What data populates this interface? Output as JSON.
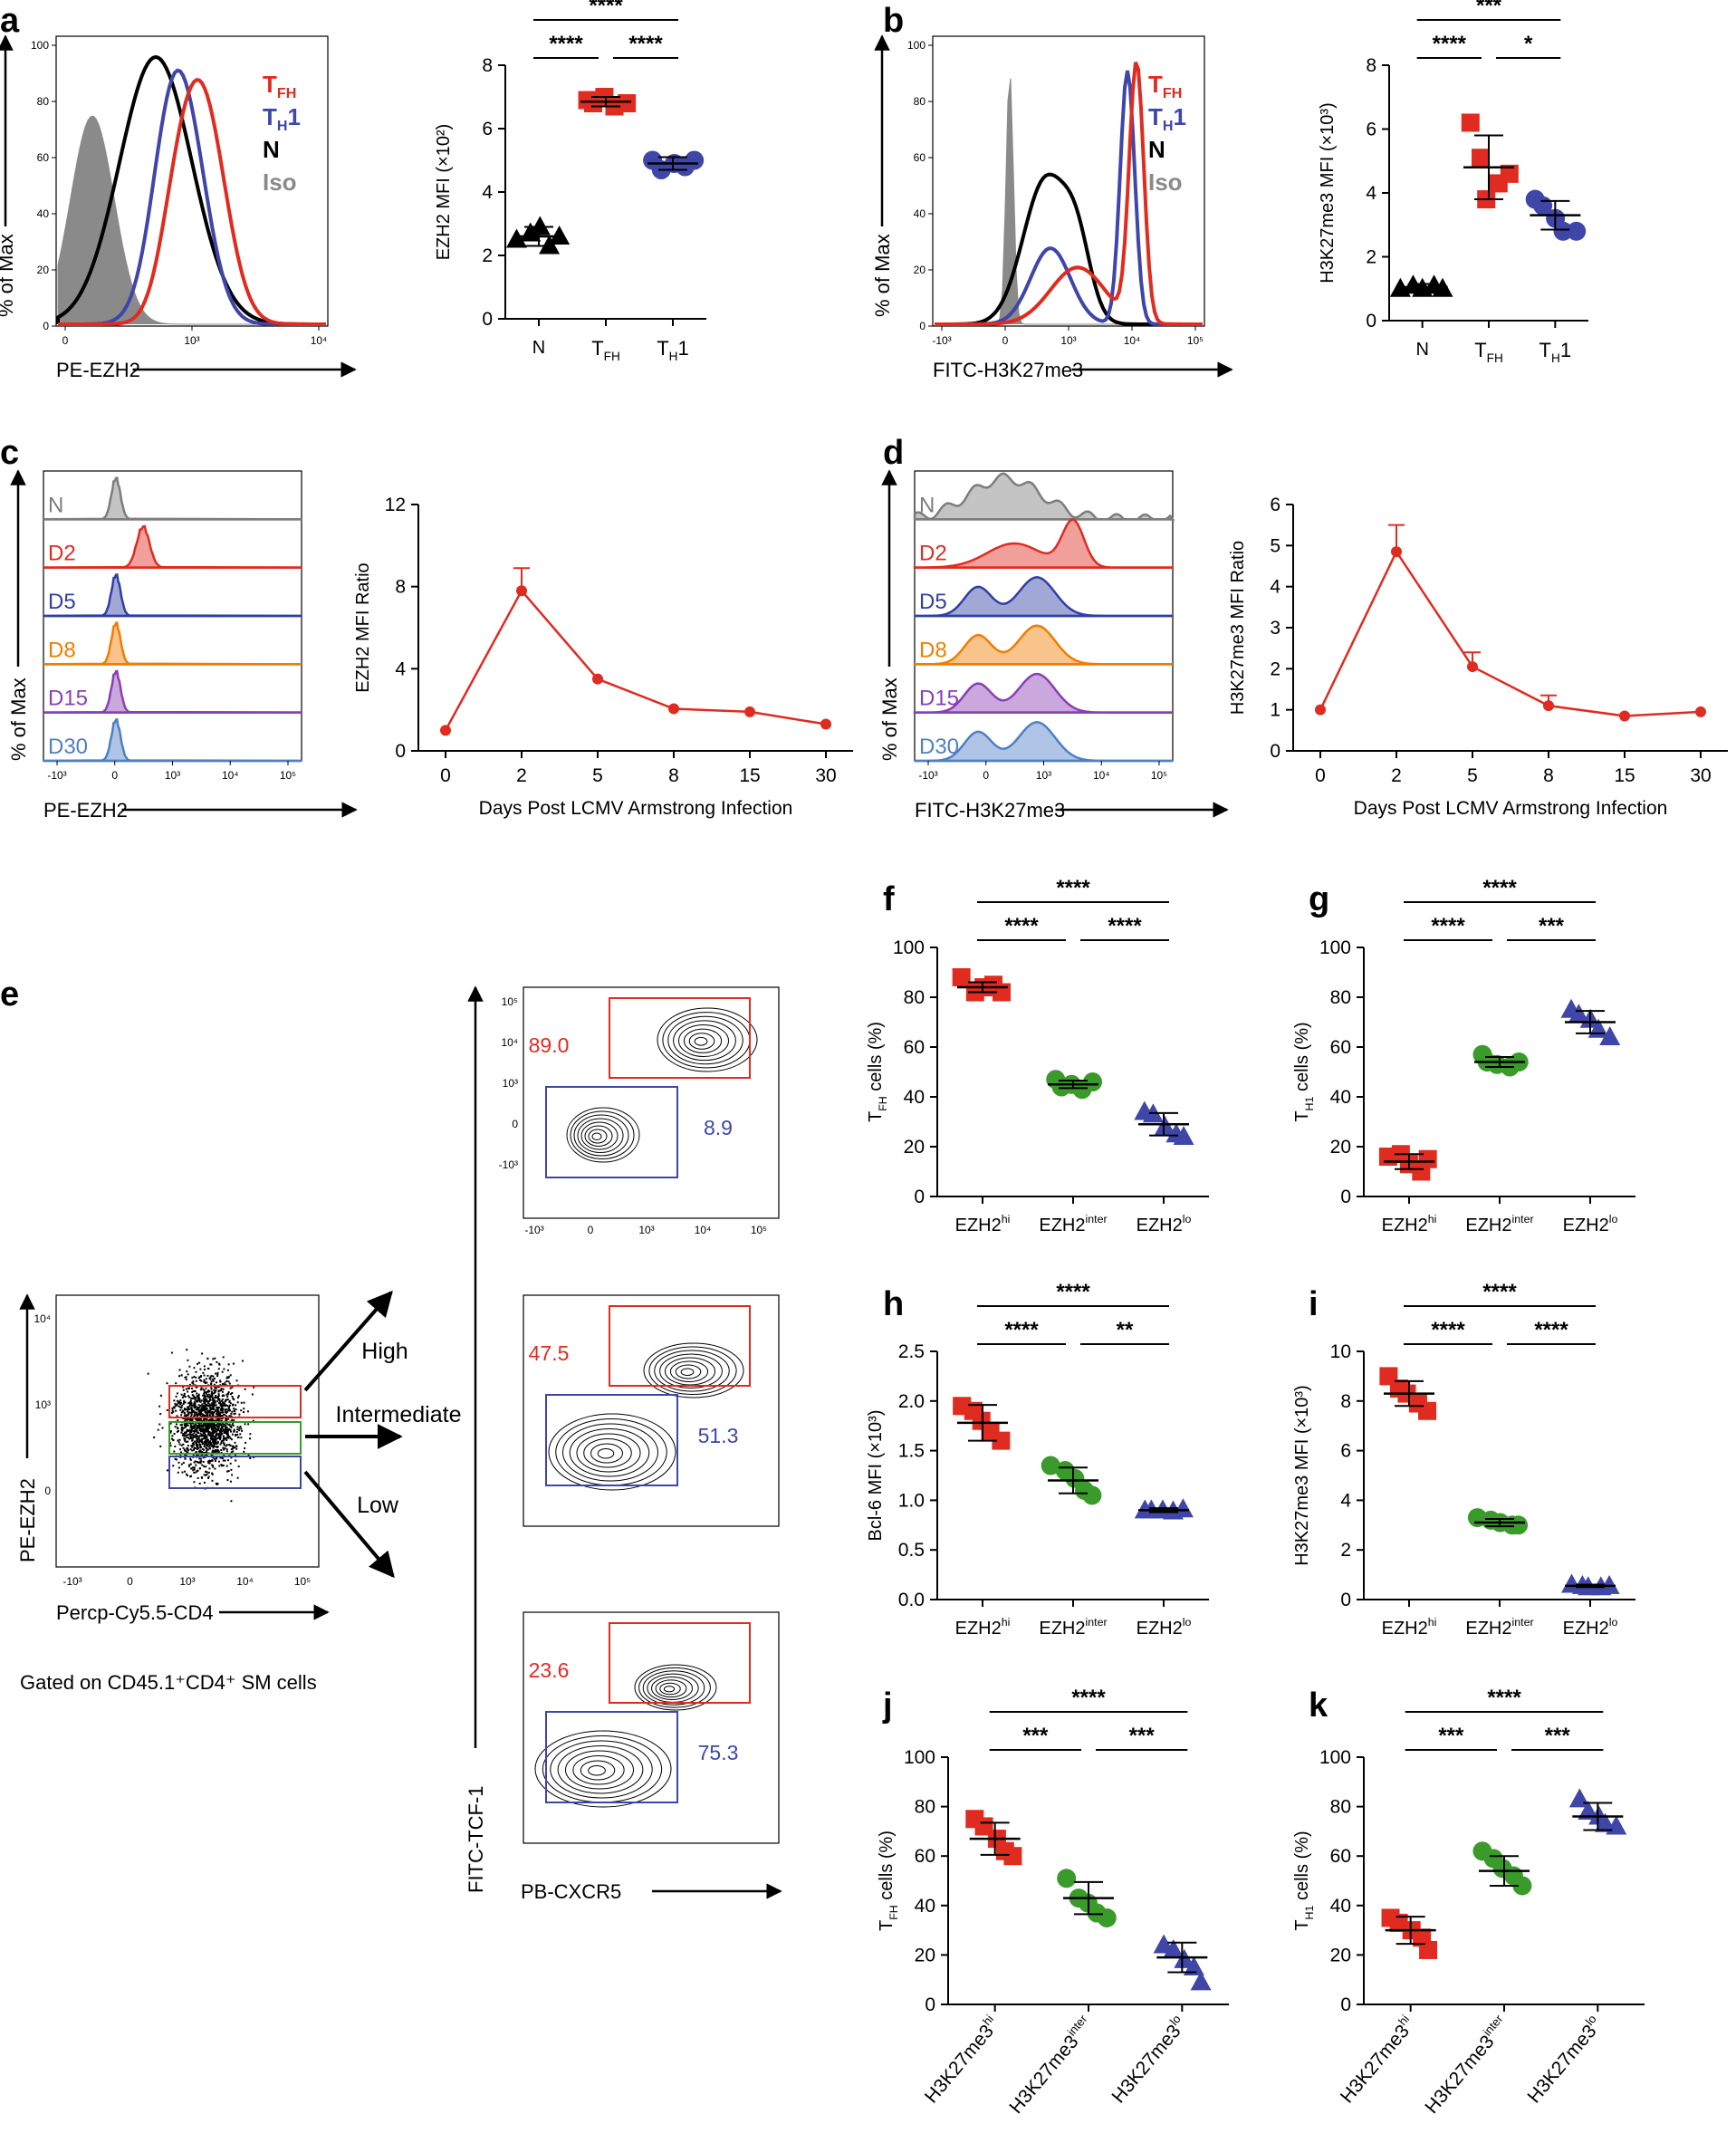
{
  "colors": {
    "tfh": "#e02b20",
    "th1": "#3f46a8",
    "naive": "#000000",
    "iso": "#8a8a8a",
    "green": "#3a9a2a",
    "orange": "#f07d00",
    "purple": "#8a3fb5",
    "blue": "#2f3fa5",
    "lightblue": "#4f7fc5",
    "gray": "#7d7d7d",
    "red": "#e02b20"
  },
  "panel_letters": [
    "a",
    "b",
    "c",
    "d",
    "e",
    "f",
    "g",
    "h",
    "i",
    "j",
    "k"
  ],
  "panel_a": {
    "hist_xlabel": "PE-EZH2",
    "hist_ylabel": "% of Max",
    "hist_yticks": [
      "0",
      "20",
      "40",
      "60",
      "80",
      "100"
    ],
    "hist_xticks": [
      "0",
      "10³",
      "10⁴"
    ],
    "legend": [
      {
        "label": "T",
        "sub": "FH",
        "post": "",
        "color": "#e02b20"
      },
      {
        "label": "T",
        "sub": "H",
        "post": "1",
        "color": "#3f46a8"
      },
      {
        "label": "N",
        "sub": "",
        "post": "",
        "color": "#000000"
      },
      {
        "label": "Iso",
        "sub": "",
        "post": "",
        "color": "#8a8a8a"
      }
    ]
  },
  "panel_b": {
    "hist_xlabel": "FITC-H3K27me3",
    "hist_ylabel": "% of Max",
    "hist_yticks": [
      "0",
      "20",
      "40",
      "60",
      "80",
      "100"
    ],
    "hist_xticks": [
      "-10³",
      "0",
      "10³",
      "10⁴",
      "10⁵"
    ],
    "legend": [
      {
        "label": "T",
        "sub": "FH",
        "post": "",
        "color": "#e02b20"
      },
      {
        "label": "T",
        "sub": "H",
        "post": "1",
        "color": "#3f46a8"
      },
      {
        "label": "N",
        "sub": "",
        "post": "",
        "color": "#000000"
      },
      {
        "label": "Iso",
        "sub": "",
        "post": "",
        "color": "#8a8a8a"
      }
    ]
  },
  "panel_c": {
    "hist_xlabel": "PE-EZH2",
    "hist_ylabel": "% of Max",
    "hist_xticks": [
      "-10³",
      "0",
      "10³",
      "10⁴",
      "10⁵"
    ],
    "rows": [
      {
        "label": "N",
        "color": "#7d7d7d"
      },
      {
        "label": "D2",
        "color": "#e02b20"
      },
      {
        "label": "D5",
        "color": "#2f3fa5"
      },
      {
        "label": "D8",
        "color": "#f07d00"
      },
      {
        "label": "D15",
        "color": "#8a3fb5"
      },
      {
        "label": "D30",
        "color": "#4f7fc5"
      }
    ]
  },
  "panel_d": {
    "hist_xlabel": "FITC-H3K27me3",
    "hist_ylabel": "% of Max",
    "hist_xticks": [
      "-10³",
      "0",
      "10³",
      "10⁴",
      "10⁵"
    ],
    "rows": [
      {
        "label": "N",
        "color": "#7d7d7d"
      },
      {
        "label": "D2",
        "color": "#e02b20"
      },
      {
        "label": "D5",
        "color": "#2f3fa5"
      },
      {
        "label": "D8",
        "color": "#f07d00"
      },
      {
        "label": "D15",
        "color": "#8a3fb5"
      },
      {
        "label": "D30",
        "color": "#4f7fc5"
      }
    ]
  },
  "panel_e": {
    "dot_xlabel": "Percp-Cy5.5-CD4",
    "dot_ylabel": "PE-EZH2",
    "dot_xticks": [
      "-10³",
      "0",
      "10³",
      "10⁴",
      "10⁵"
    ],
    "dot_yticks": [
      "10⁴",
      "10³",
      "0"
    ],
    "gates": [
      "High",
      "Intermediate",
      "Low"
    ],
    "gated_caption": "Gated on CD45.1⁺CD4⁺ SM cells",
    "contour_xlabel": "PB-CXCR5",
    "contour_ylabel": "FITC-TCF-1",
    "contour_xticks": [
      "-10³",
      "0",
      "10³",
      "10⁴",
      "10⁵"
    ],
    "contour_yticks": [
      "10⁵",
      "10⁴",
      "10³",
      "0",
      "-10³"
    ],
    "contours": [
      {
        "upper": "89.0",
        "lower": "8.9"
      },
      {
        "upper": "47.5",
        "lower": "51.3"
      },
      {
        "upper": "23.6",
        "lower": "75.3"
      }
    ]
  },
  "chart_data": [
    {
      "id": "a",
      "type": "scatter",
      "ylabel": "EZH2 MFI (×10²)",
      "ylim": [
        0,
        8
      ],
      "yticks": [
        0,
        2,
        4,
        6,
        8
      ],
      "categories": [
        "N",
        "TFH",
        "TH1"
      ],
      "series": [
        {
          "name": "N",
          "marker": "triangle",
          "color": "#000000",
          "points": [
            2.5,
            2.7,
            2.9,
            2.3,
            2.6
          ],
          "mean": 2.6,
          "sd": 0.3
        },
        {
          "name": "TFH",
          "marker": "square",
          "color": "#e02b20",
          "points": [
            6.9,
            6.8,
            7.0,
            6.7,
            6.8
          ],
          "mean": 6.85,
          "sd": 0.15
        },
        {
          "name": "TH1",
          "marker": "circle",
          "color": "#3f46a8",
          "points": [
            5.0,
            4.7,
            4.9,
            4.8,
            5.0
          ],
          "mean": 4.9,
          "sd": 0.2
        }
      ],
      "sig": [
        {
          "label": "****",
          "from": 0,
          "to": 2,
          "level": 2
        },
        {
          "label": "****",
          "from": 0,
          "to": 1,
          "level": 1
        },
        {
          "label": "****",
          "from": 1,
          "to": 2,
          "level": 1
        }
      ]
    },
    {
      "id": "b",
      "type": "scatter",
      "ylabel": "H3K27me3 MFI (×10³)",
      "ylim": [
        0,
        8
      ],
      "yticks": [
        0,
        2,
        4,
        6,
        8
      ],
      "categories": [
        "N",
        "TFH",
        "TH1"
      ],
      "series": [
        {
          "name": "N",
          "marker": "triangle",
          "color": "#000000",
          "points": [
            1.0,
            1.1,
            1.0,
            1.1,
            1.0
          ],
          "mean": 1.05,
          "sd": 0.1
        },
        {
          "name": "TFH",
          "marker": "square",
          "color": "#e02b20",
          "points": [
            6.2,
            5.1,
            3.8,
            4.3,
            4.6
          ],
          "mean": 4.8,
          "sd": 1.0
        },
        {
          "name": "TH1",
          "marker": "circle",
          "color": "#3f46a8",
          "points": [
            3.8,
            3.6,
            3.2,
            2.8,
            2.8
          ],
          "mean": 3.3,
          "sd": 0.45
        }
      ],
      "sig": [
        {
          "label": "***",
          "from": 0,
          "to": 2,
          "level": 2
        },
        {
          "label": "****",
          "from": 0,
          "to": 1,
          "level": 1
        },
        {
          "label": "*",
          "from": 1,
          "to": 2,
          "level": 1
        }
      ]
    },
    {
      "id": "c",
      "type": "line",
      "xlabel": "Days Post LCMV Armstrong Infection",
      "ylabel": "EZH2 MFI Ratio",
      "ylim": [
        0,
        12
      ],
      "yticks": [
        0,
        4,
        8,
        12
      ],
      "x": [
        "0",
        "2",
        "5",
        "8",
        "15",
        "30"
      ],
      "values": [
        1.0,
        7.8,
        3.5,
        2.05,
        1.9,
        1.3
      ],
      "err": [
        0,
        1.1,
        0,
        0,
        0,
        0
      ],
      "color": "#e02b20"
    },
    {
      "id": "d",
      "type": "line",
      "xlabel": "Days Post LCMV Armstrong Infection",
      "ylabel": "H3K27me3 MFI Ratio",
      "ylim": [
        0,
        6
      ],
      "yticks": [
        0,
        1,
        2,
        3,
        4,
        5,
        6
      ],
      "x": [
        "0",
        "2",
        "5",
        "8",
        "15",
        "30"
      ],
      "values": [
        1.0,
        4.85,
        2.05,
        1.1,
        0.85,
        0.95
      ],
      "err": [
        0,
        0.65,
        0.35,
        0.25,
        0,
        0
      ],
      "color": "#e02b20"
    },
    {
      "id": "f",
      "type": "scatter",
      "ylabel": "T_FH cells (%)",
      "ylim": [
        0,
        100
      ],
      "yticks": [
        0,
        20,
        40,
        60,
        80,
        100
      ],
      "categories": [
        "EZH2hi",
        "EZH2inter",
        "EZH2lo"
      ],
      "series": [
        {
          "name": "EZH2hi",
          "marker": "square",
          "color": "#e02b20",
          "points": [
            88,
            82,
            84,
            85,
            82
          ],
          "mean": 84,
          "sd": 2
        },
        {
          "name": "EZH2inter",
          "marker": "circle",
          "color": "#3a9a2a",
          "points": [
            47,
            44,
            45,
            43,
            46
          ],
          "mean": 45,
          "sd": 1.5
        },
        {
          "name": "EZH2lo",
          "marker": "triangle",
          "color": "#3f46a8",
          "points": [
            34,
            33,
            28,
            25,
            24
          ],
          "mean": 29,
          "sd": 4.5
        }
      ],
      "sig": [
        {
          "label": "****",
          "from": 0,
          "to": 2,
          "level": 2
        },
        {
          "label": "****",
          "from": 0,
          "to": 1,
          "level": 1
        },
        {
          "label": "****",
          "from": 1,
          "to": 2,
          "level": 1
        }
      ]
    },
    {
      "id": "g",
      "type": "scatter",
      "ylabel": "T_H1 cells (%)",
      "ylim": [
        0,
        100
      ],
      "yticks": [
        0,
        20,
        40,
        60,
        80,
        100
      ],
      "categories": [
        "EZH2hi",
        "EZH2inter",
        "EZH2lo"
      ],
      "series": [
        {
          "name": "EZH2hi",
          "marker": "square",
          "color": "#e02b20",
          "points": [
            16,
            17,
            13,
            10,
            15
          ],
          "mean": 14,
          "sd": 3
        },
        {
          "name": "EZH2inter",
          "marker": "circle",
          "color": "#3a9a2a",
          "points": [
            57,
            54,
            53,
            52,
            54
          ],
          "mean": 54,
          "sd": 2
        },
        {
          "name": "EZH2lo",
          "marker": "triangle",
          "color": "#3f46a8",
          "points": [
            75,
            73,
            71,
            67,
            64
          ],
          "mean": 70,
          "sd": 4.5
        }
      ],
      "sig": [
        {
          "label": "****",
          "from": 0,
          "to": 2,
          "level": 2
        },
        {
          "label": "****",
          "from": 0,
          "to": 1,
          "level": 1
        },
        {
          "label": "***",
          "from": 1,
          "to": 2,
          "level": 1
        }
      ]
    },
    {
      "id": "h",
      "type": "scatter",
      "ylabel": "Bcl-6 MFI (×10³)",
      "ylim": [
        0,
        2.5
      ],
      "yticks": [
        0,
        0.5,
        1.0,
        1.5,
        2.0,
        2.5
      ],
      "ytickLabels": [
        "0.0",
        "0.5",
        "1.0",
        "1.5",
        "2.0",
        "2.5"
      ],
      "categories": [
        "EZH2hi",
        "EZH2inter",
        "EZH2lo"
      ],
      "series": [
        {
          "name": "EZH2hi",
          "marker": "square",
          "color": "#e02b20",
          "points": [
            1.95,
            1.9,
            1.8,
            1.7,
            1.6
          ],
          "mean": 1.78,
          "sd": 0.18
        },
        {
          "name": "EZH2inter",
          "marker": "circle",
          "color": "#3a9a2a",
          "points": [
            1.35,
            1.3,
            1.22,
            1.1,
            1.05
          ],
          "mean": 1.2,
          "sd": 0.13
        },
        {
          "name": "EZH2lo",
          "marker": "triangle",
          "color": "#3f46a8",
          "points": [
            0.9,
            0.9,
            0.9,
            0.89,
            0.91
          ],
          "mean": 0.9,
          "sd": 0.02
        }
      ],
      "sig": [
        {
          "label": "****",
          "from": 0,
          "to": 2,
          "level": 2
        },
        {
          "label": "****",
          "from": 0,
          "to": 1,
          "level": 1
        },
        {
          "label": "**",
          "from": 1,
          "to": 2,
          "level": 1
        }
      ]
    },
    {
      "id": "i",
      "type": "scatter",
      "ylabel": "H3K27me3 MFI (×10³)",
      "ylim": [
        0,
        10
      ],
      "yticks": [
        0,
        2,
        4,
        6,
        8,
        10
      ],
      "categories": [
        "EZH2hi",
        "EZH2inter",
        "EZH2lo"
      ],
      "series": [
        {
          "name": "EZH2hi",
          "marker": "square",
          "color": "#e02b20",
          "points": [
            9.0,
            8.5,
            8.3,
            7.9,
            7.6
          ],
          "mean": 8.3,
          "sd": 0.5
        },
        {
          "name": "EZH2inter",
          "marker": "circle",
          "color": "#3a9a2a",
          "points": [
            3.3,
            3.2,
            3.1,
            3.0,
            3.0
          ],
          "mean": 3.1,
          "sd": 0.15
        },
        {
          "name": "EZH2lo",
          "marker": "triangle",
          "color": "#3f46a8",
          "points": [
            0.6,
            0.55,
            0.5,
            0.5,
            0.55
          ],
          "mean": 0.55,
          "sd": 0.05
        }
      ],
      "sig": [
        {
          "label": "****",
          "from": 0,
          "to": 2,
          "level": 2
        },
        {
          "label": "****",
          "from": 0,
          "to": 1,
          "level": 1
        },
        {
          "label": "****",
          "from": 1,
          "to": 2,
          "level": 1
        }
      ]
    },
    {
      "id": "j",
      "type": "scatter",
      "ylabel": "T_FH cells (%)",
      "ylim": [
        0,
        100
      ],
      "yticks": [
        0,
        20,
        40,
        60,
        80,
        100
      ],
      "categories": [
        "H3K27me3hi",
        "H3K27me3inter",
        "H3K27me3lo"
      ],
      "series": [
        {
          "name": "H3K27me3hi",
          "marker": "square",
          "color": "#e02b20",
          "points": [
            75,
            72,
            67,
            62,
            60
          ],
          "mean": 67,
          "sd": 6.5
        },
        {
          "name": "H3K27me3inter",
          "marker": "circle",
          "color": "#3a9a2a",
          "points": [
            51,
            43,
            41,
            37,
            35
          ],
          "mean": 43,
          "sd": 6.5
        },
        {
          "name": "H3K27me3lo",
          "marker": "triangle",
          "color": "#3f46a8",
          "points": [
            24,
            22,
            18,
            15,
            9
          ],
          "mean": 19,
          "sd": 6
        }
      ],
      "sig": [
        {
          "label": "****",
          "from": 0,
          "to": 2,
          "level": 2
        },
        {
          "label": "***",
          "from": 0,
          "to": 1,
          "level": 1
        },
        {
          "label": "***",
          "from": 1,
          "to": 2,
          "level": 1
        }
      ]
    },
    {
      "id": "k",
      "type": "scatter",
      "ylabel": "T_H1 cells (%)",
      "ylim": [
        0,
        100
      ],
      "yticks": [
        0,
        20,
        40,
        60,
        80,
        100
      ],
      "categories": [
        "H3K27me3hi",
        "H3K27me3inter",
        "H3K27me3lo"
      ],
      "series": [
        {
          "name": "H3K27me3hi",
          "marker": "square",
          "color": "#e02b20",
          "points": [
            35,
            33,
            30,
            27,
            22
          ],
          "mean": 30,
          "sd": 5.5
        },
        {
          "name": "H3K27me3inter",
          "marker": "circle",
          "color": "#3a9a2a",
          "points": [
            62,
            59,
            55,
            52,
            48
          ],
          "mean": 54,
          "sd": 6
        },
        {
          "name": "H3K27me3lo",
          "marker": "triangle",
          "color": "#3f46a8",
          "points": [
            83,
            78,
            76,
            73,
            72
          ],
          "mean": 76,
          "sd": 5.5
        }
      ],
      "sig": [
        {
          "label": "****",
          "from": 0,
          "to": 2,
          "level": 2
        },
        {
          "label": "***",
          "from": 0,
          "to": 1,
          "level": 1
        },
        {
          "label": "***",
          "from": 1,
          "to": 2,
          "level": 1
        }
      ]
    }
  ]
}
